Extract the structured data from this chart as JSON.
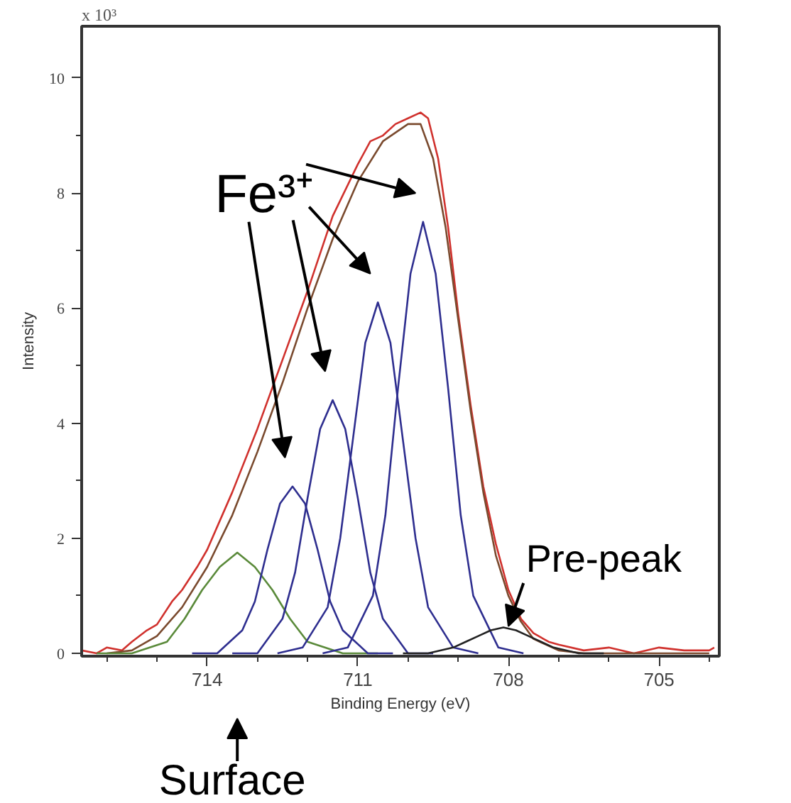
{
  "chart_data": {
    "type": "line",
    "xlabel": "Binding Energy (eV)",
    "ylabel": "Intensity",
    "xlim": [
      716.5,
      703.8
    ],
    "xticks": [
      714,
      711,
      708,
      705
    ],
    "ylim": [
      -0.05,
      10.9
    ],
    "yticks": [
      0,
      2,
      4,
      6,
      8,
      10
    ],
    "grid": false,
    "marker": "none",
    "line_style": "solid",
    "annotations": [
      "x 10³",
      "Fe³⁺",
      {
        "text": "Pre-peak",
        "x": 708.0,
        "y": 0.47
      },
      "Surface"
    ],
    "series": [
      {
        "color": "#d0312d",
        "x": [
          716.5,
          716.2,
          716,
          715.7,
          715.5,
          715.2,
          715,
          714.7,
          714.5,
          714.2,
          714,
          713.5,
          713,
          712.5,
          712,
          711.5,
          711,
          710.75,
          710.5,
          710.25,
          710,
          709.75,
          709.6,
          709.4,
          709.2,
          709,
          708.75,
          708.5,
          708.25,
          708,
          707.75,
          707.5,
          707.2,
          707,
          706.5,
          706,
          705.5,
          705,
          704.5,
          704,
          703.9
        ],
        "values": [
          0.05,
          0.0,
          0.1,
          0.05,
          0.2,
          0.4,
          0.5,
          0.9,
          1.1,
          1.5,
          1.8,
          2.8,
          3.9,
          5.1,
          6.3,
          7.6,
          8.5,
          8.9,
          9.0,
          9.2,
          9.3,
          9.4,
          9.3,
          8.6,
          7.4,
          5.9,
          4.3,
          2.9,
          1.9,
          1.1,
          0.6,
          0.35,
          0.2,
          0.15,
          0.05,
          0.1,
          0.0,
          0.1,
          0.05,
          0.05,
          0.1
        ]
      },
      {
        "color": "#7a4a2e",
        "x": [
          716,
          715.5,
          715,
          714.5,
          714,
          713.5,
          713,
          712.5,
          712,
          711.5,
          711,
          710.5,
          710,
          709.75,
          709.5,
          709.25,
          709,
          708.75,
          708.5,
          708.25,
          708,
          707.75,
          707.5,
          707,
          706.5,
          704
        ],
        "values": [
          0,
          0.05,
          0.3,
          0.8,
          1.5,
          2.4,
          3.5,
          4.7,
          6.0,
          7.2,
          8.2,
          8.9,
          9.2,
          9.2,
          8.6,
          7.4,
          5.8,
          4.2,
          2.8,
          1.7,
          1.0,
          0.55,
          0.25,
          0.05,
          0,
          0
        ]
      },
      {
        "color": "#5a8a3a",
        "x": [
          710.6,
          711.3,
          712.0,
          712.35,
          712.7,
          713.05,
          713.4,
          713.75,
          714.1,
          714.45,
          714.8,
          715.5,
          716.2
        ],
        "values": [
          0,
          0,
          0.2,
          0.6,
          1.1,
          1.5,
          1.75,
          1.5,
          1.1,
          0.6,
          0.2,
          0,
          0
        ]
      },
      {
        "color": "#2e2e8f",
        "x": [
          710.3,
          710.8,
          711.3,
          711.55,
          711.8,
          712.05,
          712.3,
          712.55,
          712.8,
          713.05,
          713.3,
          713.8,
          714.3
        ],
        "values": [
          0,
          0,
          0.4,
          0.9,
          1.8,
          2.6,
          2.9,
          2.6,
          1.8,
          0.9,
          0.4,
          0,
          0
        ]
      },
      {
        "color": "#2e2e8f",
        "x": [
          709.5,
          710,
          710.5,
          710.75,
          711,
          711.25,
          711.5,
          711.75,
          712,
          712.25,
          712.5,
          713,
          713.5
        ],
        "values": [
          0,
          0,
          0.6,
          1.4,
          2.7,
          3.9,
          4.4,
          3.9,
          2.7,
          1.4,
          0.6,
          0,
          0
        ]
      },
      {
        "color": "#2e2e8f",
        "x": [
          708.6,
          709.1,
          709.6,
          709.85,
          710.1,
          710.35,
          710.6,
          710.85,
          711.1,
          711.35,
          711.6,
          712.1,
          712.6
        ],
        "values": [
          0,
          0.1,
          0.8,
          2.0,
          3.7,
          5.4,
          6.1,
          5.4,
          3.7,
          2.0,
          0.8,
          0.1,
          0
        ]
      },
      {
        "color": "#2e2e8f",
        "x": [
          707.7,
          708.2,
          708.7,
          708.95,
          709.2,
          709.45,
          709.7,
          709.95,
          710.2,
          710.45,
          710.7,
          711.2,
          711.7
        ],
        "values": [
          0,
          0.1,
          1.0,
          2.4,
          4.6,
          6.6,
          7.5,
          6.6,
          4.6,
          2.4,
          1.0,
          0.1,
          0
        ]
      },
      {
        "color": "#222222",
        "x": [
          706.1,
          706.6,
          707.1,
          707.35,
          707.6,
          707.85,
          708.1,
          708.35,
          708.6,
          708.85,
          709.1,
          709.6,
          710.1
        ],
        "values": [
          0,
          0,
          0.1,
          0.2,
          0.3,
          0.4,
          0.45,
          0.4,
          0.3,
          0.2,
          0.1,
          0,
          0
        ]
      }
    ]
  }
}
